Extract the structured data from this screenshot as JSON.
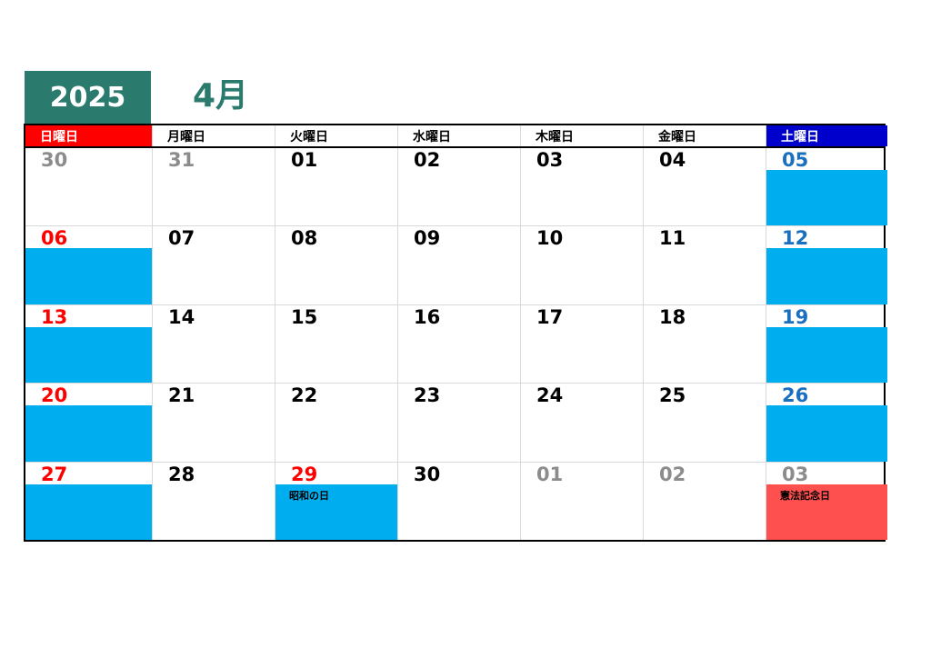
{
  "header": {
    "year": "2025",
    "month": "4月"
  },
  "colors": {
    "accent": "#2a7b6e",
    "sunday_header": "#ff0000",
    "saturday_header": "#0000cc",
    "weekend_fill": "#00aeef",
    "holiday_fill": "#ff5050"
  },
  "weekdays": [
    {
      "label": "日曜日",
      "bg": "#ff0000",
      "color": "#ffffff"
    },
    {
      "label": "月曜日",
      "bg": "#ffffff",
      "color": "#000000"
    },
    {
      "label": "火曜日",
      "bg": "#ffffff",
      "color": "#000000"
    },
    {
      "label": "水曜日",
      "bg": "#ffffff",
      "color": "#000000"
    },
    {
      "label": "木曜日",
      "bg": "#ffffff",
      "color": "#000000"
    },
    {
      "label": "金曜日",
      "bg": "#ffffff",
      "color": "#000000"
    },
    {
      "label": "土曜日",
      "bg": "#0000cc",
      "color": "#ffffff"
    }
  ],
  "weeks": [
    [
      {
        "day": "30",
        "color": "#8c8c8c"
      },
      {
        "day": "31",
        "color": "#8c8c8c"
      },
      {
        "day": "01",
        "color": "#000000"
      },
      {
        "day": "02",
        "color": "#000000"
      },
      {
        "day": "03",
        "color": "#000000"
      },
      {
        "day": "04",
        "color": "#000000"
      },
      {
        "day": "05",
        "color": "#1a6fbf",
        "fill": "#00aeef"
      }
    ],
    [
      {
        "day": "06",
        "color": "#ff0000",
        "fill": "#00aeef"
      },
      {
        "day": "07",
        "color": "#000000"
      },
      {
        "day": "08",
        "color": "#000000"
      },
      {
        "day": "09",
        "color": "#000000"
      },
      {
        "day": "10",
        "color": "#000000"
      },
      {
        "day": "11",
        "color": "#000000"
      },
      {
        "day": "12",
        "color": "#1a6fbf",
        "fill": "#00aeef"
      }
    ],
    [
      {
        "day": "13",
        "color": "#ff0000",
        "fill": "#00aeef"
      },
      {
        "day": "14",
        "color": "#000000"
      },
      {
        "day": "15",
        "color": "#000000"
      },
      {
        "day": "16",
        "color": "#000000"
      },
      {
        "day": "17",
        "color": "#000000"
      },
      {
        "day": "18",
        "color": "#000000"
      },
      {
        "day": "19",
        "color": "#1a6fbf",
        "fill": "#00aeef"
      }
    ],
    [
      {
        "day": "20",
        "color": "#ff0000",
        "fill": "#00aeef"
      },
      {
        "day": "21",
        "color": "#000000"
      },
      {
        "day": "22",
        "color": "#000000"
      },
      {
        "day": "23",
        "color": "#000000"
      },
      {
        "day": "24",
        "color": "#000000"
      },
      {
        "day": "25",
        "color": "#000000"
      },
      {
        "day": "26",
        "color": "#1a6fbf",
        "fill": "#00aeef"
      }
    ],
    [
      {
        "day": "27",
        "color": "#ff0000",
        "fill": "#00aeef"
      },
      {
        "day": "28",
        "color": "#000000"
      },
      {
        "day": "29",
        "color": "#ff0000",
        "fill": "#00aeef",
        "note": "昭和の日"
      },
      {
        "day": "30",
        "color": "#000000"
      },
      {
        "day": "01",
        "color": "#8c8c8c"
      },
      {
        "day": "02",
        "color": "#8c8c8c"
      },
      {
        "day": "03",
        "color": "#8c8c8c",
        "fill": "#ff5050",
        "note": "憲法記念日"
      }
    ]
  ]
}
